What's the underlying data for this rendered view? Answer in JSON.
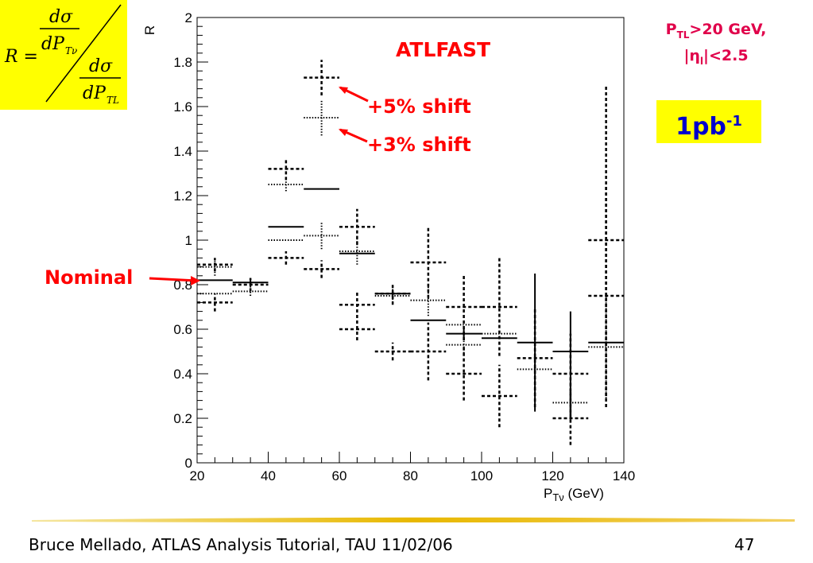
{
  "formula": {
    "lhs": "R =",
    "num_d": "dσ",
    "num_den": "dP",
    "num_sub": "Tν",
    "den_d": "dσ",
    "den_den": "dP",
    "den_sub": "TL"
  },
  "chart_label": "ATLFAST",
  "cuts": {
    "line1_p": "P",
    "line1_sub": "TL",
    "line1_rest": ">20 GeV,",
    "line2_pre": "|η",
    "line2_sub": "l",
    "line2_rest": "|<2.5"
  },
  "luminosity": {
    "base": "1pb",
    "exp": "-1"
  },
  "annotations": {
    "shift5": "+5% shift",
    "shift3": "+3% shift",
    "nominal": "Nominal"
  },
  "footer": {
    "text": "Bruce Mellado, ATLAS Analysis Tutorial, TAU 11/02/06",
    "page": "47"
  },
  "colors": {
    "accent_red": "#ff0000",
    "cut_text": "#e0004a",
    "highlight_yellow": "#ffff00",
    "lumi_blue": "#0000cc"
  },
  "chart_data": {
    "type": "scatter",
    "xlabel_base": "P",
    "xlabel_sub": "Tν",
    "xlabel_unit": " (GeV)",
    "ylabel": "R",
    "xlim": [
      20,
      140
    ],
    "ylim": [
      0,
      2
    ],
    "x_ticks": [
      "20",
      "40",
      "60",
      "80",
      "100",
      "120",
      "140"
    ],
    "y_ticks": [
      "0",
      "0.2",
      "0.4",
      "0.6",
      "0.8",
      "1",
      "1.2",
      "1.4",
      "1.6",
      "1.8",
      "2"
    ],
    "grid": false,
    "bin_width": 10,
    "series": [
      {
        "style": "solid",
        "points": [
          {
            "x": 25,
            "y": 0.82,
            "err": 0.0
          },
          {
            "x": 35,
            "y": 0.81,
            "err": 0.02
          },
          {
            "x": 45,
            "y": 1.06,
            "err": 0.0
          },
          {
            "x": 55,
            "y": 1.23,
            "err": 0.0
          },
          {
            "x": 65,
            "y": 0.94,
            "err": 0.0
          },
          {
            "x": 75,
            "y": 0.76,
            "err": 0.02
          },
          {
            "x": 85,
            "y": 0.64,
            "err": 0.0
          },
          {
            "x": 95,
            "y": 0.58,
            "err": 0.03
          },
          {
            "x": 105,
            "y": 0.56,
            "err": 0.0
          },
          {
            "x": 115,
            "y": 0.54,
            "err": 0.31
          },
          {
            "x": 125,
            "y": 0.5,
            "err": 0.18
          },
          {
            "x": 135,
            "y": 0.54,
            "err": 0.0
          }
        ]
      },
      {
        "style": "dotted",
        "points": [
          {
            "x": 25,
            "y": 0.88,
            "err": 0.04
          },
          {
            "x": 25,
            "y": 0.76,
            "err": 0.0
          },
          {
            "x": 35,
            "y": 0.77,
            "err": 0.02
          },
          {
            "x": 45,
            "y": 1.25,
            "err": 0.03
          },
          {
            "x": 45,
            "y": 1.0,
            "err": 0.0
          },
          {
            "x": 55,
            "y": 1.55,
            "err": 0.08
          },
          {
            "x": 55,
            "y": 1.02,
            "err": 0.06
          },
          {
            "x": 65,
            "y": 0.95,
            "err": 0.06
          },
          {
            "x": 75,
            "y": 0.75,
            "err": 0.03
          },
          {
            "x": 85,
            "y": 0.73,
            "err": 0.07
          },
          {
            "x": 95,
            "y": 0.53,
            "err": 0.05
          },
          {
            "x": 95,
            "y": 0.62,
            "err": 0.0
          },
          {
            "x": 105,
            "y": 0.58,
            "err": 0.0
          },
          {
            "x": 115,
            "y": 0.42,
            "err": 0.12
          },
          {
            "x": 125,
            "y": 0.27,
            "err": 0.08
          },
          {
            "x": 135,
            "y": 0.52,
            "err": 0.23
          }
        ]
      },
      {
        "style": "dashed",
        "points": [
          {
            "x": 25,
            "y": 0.89,
            "err": 0.03
          },
          {
            "x": 25,
            "y": 0.72,
            "err": 0.04
          },
          {
            "x": 35,
            "y": 0.8,
            "err": 0.03
          },
          {
            "x": 45,
            "y": 1.32,
            "err": 0.05
          },
          {
            "x": 45,
            "y": 0.92,
            "err": 0.03
          },
          {
            "x": 55,
            "y": 1.73,
            "err": 0.08
          },
          {
            "x": 55,
            "y": 0.87,
            "err": 0.04
          },
          {
            "x": 65,
            "y": 1.06,
            "err": 0.08
          },
          {
            "x": 65,
            "y": 0.71,
            "err": 0.06
          },
          {
            "x": 65,
            "y": 0.6,
            "err": 0.05
          },
          {
            "x": 75,
            "y": 0.76,
            "err": 0.05
          },
          {
            "x": 75,
            "y": 0.5,
            "err": 0.04
          },
          {
            "x": 85,
            "y": 0.9,
            "err": 0.16
          },
          {
            "x": 85,
            "y": 0.5,
            "err": 0.13
          },
          {
            "x": 95,
            "y": 0.7,
            "err": 0.15
          },
          {
            "x": 95,
            "y": 0.4,
            "err": 0.12
          },
          {
            "x": 105,
            "y": 0.7,
            "err": 0.22
          },
          {
            "x": 105,
            "y": 0.3,
            "err": 0.14
          },
          {
            "x": 115,
            "y": 0.47,
            "err": 0.22
          },
          {
            "x": 125,
            "y": 0.4,
            "err": 0.18
          },
          {
            "x": 125,
            "y": 0.2,
            "err": 0.12
          },
          {
            "x": 135,
            "y": 1.0,
            "err": 0.7
          },
          {
            "x": 135,
            "y": 0.75,
            "err": 0.5
          }
        ]
      }
    ]
  }
}
